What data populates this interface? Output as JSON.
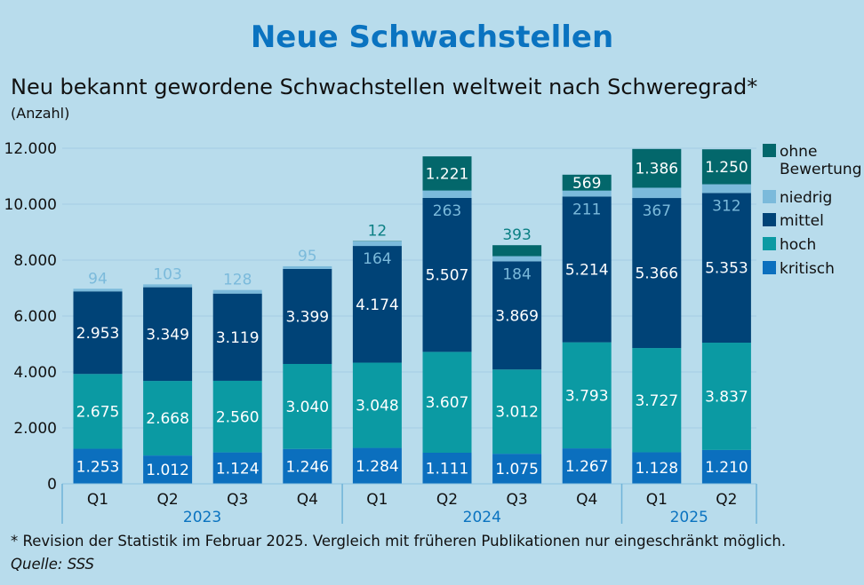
{
  "title": "Neue Schwachstellen",
  "subtitle": "Neu bekannt gewordene Schwachstellen weltweit nach Schweregrad*",
  "unit": "(Anzahl)",
  "footnote": "* Revision der Statistik im Februar 2025. Vergleich mit früheren Publikationen nur eingeschränkt möglich.",
  "source": "Quelle: SSS",
  "chart_data": {
    "type": "bar",
    "stacked": true,
    "categories": [
      "Q1",
      "Q2",
      "Q3",
      "Q4",
      "Q1",
      "Q2",
      "Q3",
      "Q4",
      "Q1",
      "Q2"
    ],
    "groups": [
      {
        "label": "2023",
        "count": 4
      },
      {
        "label": "2024",
        "count": 4
      },
      {
        "label": "2025",
        "count": 2
      }
    ],
    "ylim": [
      0,
      12000
    ],
    "yticks": [
      0,
      2000,
      4000,
      6000,
      8000,
      10000,
      12000
    ],
    "ytick_labels": [
      "0",
      "2.000",
      "4.000",
      "6.000",
      "8.000",
      "10.000",
      "12.000"
    ],
    "grid": true,
    "legend_position": "right",
    "series": [
      {
        "name": "kritisch",
        "color": "#0b6fbe",
        "values": [
          1253,
          1012,
          1124,
          1246,
          1284,
          1111,
          1075,
          1267,
          1128,
          1210
        ],
        "labels": [
          "1.253",
          "1.012",
          "1.124",
          "1.246",
          "1.284",
          "1.111",
          "1.075",
          "1.267",
          "1.128",
          "1.210"
        ]
      },
      {
        "name": "hoch",
        "color": "#0b9aa3",
        "values": [
          2675,
          2668,
          2560,
          3040,
          3048,
          3607,
          3012,
          3793,
          3727,
          3837
        ],
        "labels": [
          "2.675",
          "2.668",
          "2.560",
          "3.040",
          "3.048",
          "3.607",
          "3.012",
          "3.793",
          "3.727",
          "3.837"
        ]
      },
      {
        "name": "mittel",
        "color": "#004377",
        "values": [
          2953,
          3349,
          3119,
          3399,
          4174,
          5507,
          3869,
          5214,
          5366,
          5353
        ],
        "labels": [
          "2.953",
          "3.349",
          "3.119",
          "3.399",
          "4.174",
          "5.507",
          "3.869",
          "5.214",
          "5.366",
          "5.353"
        ]
      },
      {
        "name": "niedrig",
        "color": "#7bbadb",
        "values": [
          94,
          103,
          128,
          95,
          164,
          263,
          184,
          211,
          367,
          312
        ],
        "labels": [
          "94",
          "103",
          "128",
          "95",
          "164",
          "263",
          "184",
          "211",
          "367",
          "312"
        ]
      },
      {
        "name": "ohne Bewertung",
        "color": "#03676b",
        "values": [
          0,
          0,
          0,
          0,
          12,
          1221,
          393,
          569,
          1386,
          1250
        ],
        "labels": [
          "",
          "",
          "",
          "",
          "12",
          "1.221",
          "393",
          "569",
          "1.386",
          "1.250"
        ]
      }
    ],
    "legend": [
      "ohne",
      "Bewertung"
    ]
  }
}
